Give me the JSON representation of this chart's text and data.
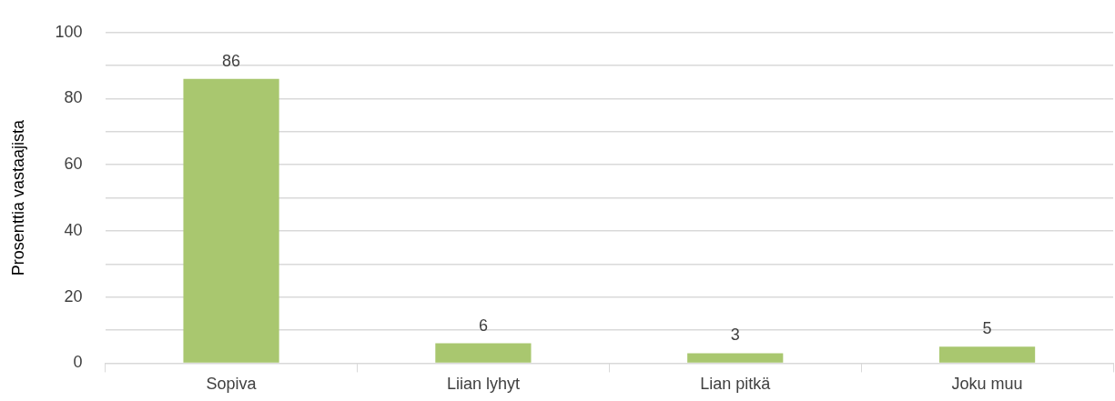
{
  "chart_data": {
    "type": "bar",
    "ylabel": "Prosenttia vastaajista",
    "categories": [
      "Sopiva",
      "Liian lyhyt",
      "Lian pitkä",
      "Joku muu"
    ],
    "values": [
      86,
      6,
      3,
      5
    ],
    "color": "#a9c76f",
    "data_labels": true,
    "ylim": [
      0,
      100
    ],
    "yticks": [
      0,
      {
        "value": 10,
        "label": null
      },
      20,
      {
        "value": 30,
        "label": null
      },
      40,
      {
        "value": 50,
        "label": null
      },
      60,
      {
        "value": 70,
        "label": null
      },
      80,
      {
        "value": 90,
        "label": null
      },
      100
    ],
    "grid": "y",
    "legend": false
  }
}
